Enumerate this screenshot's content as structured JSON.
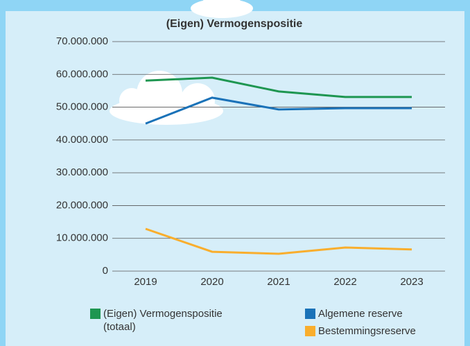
{
  "chart_data": {
    "type": "line",
    "title": "(Eigen) Vermogenspositie",
    "categories": [
      "2019",
      "2020",
      "2021",
      "2022",
      "2023"
    ],
    "series": [
      {
        "name": "(Eigen) Vermogenspositie (totaal)",
        "color": "#1e9651",
        "values": [
          58100000,
          59000000,
          54800000,
          53100000,
          53100000
        ]
      },
      {
        "name": "Algemene reserve",
        "color": "#1a72b8",
        "values": [
          45000000,
          52900000,
          49300000,
          49700000,
          49700000
        ]
      },
      {
        "name": "Bestemmingsreserve",
        "color": "#f9ae2d",
        "values": [
          12900000,
          5900000,
          5300000,
          7200000,
          6600000
        ]
      }
    ],
    "ylim": [
      0,
      70000000
    ],
    "yticks": [
      0,
      {
        "value": 10000000,
        "label": "10.000.000"
      },
      {
        "value": 20000000,
        "label": "20.000.000"
      },
      {
        "value": 30000000,
        "label": "30.000.000"
      },
      {
        "value": 40000000,
        "label": "40.000.000"
      },
      {
        "value": 50000000,
        "label": "50.000.000"
      },
      {
        "value": 60000000,
        "label": "60.000.000"
      },
      {
        "value": 70000000,
        "label": "70.000.000"
      }
    ],
    "grid": true
  }
}
